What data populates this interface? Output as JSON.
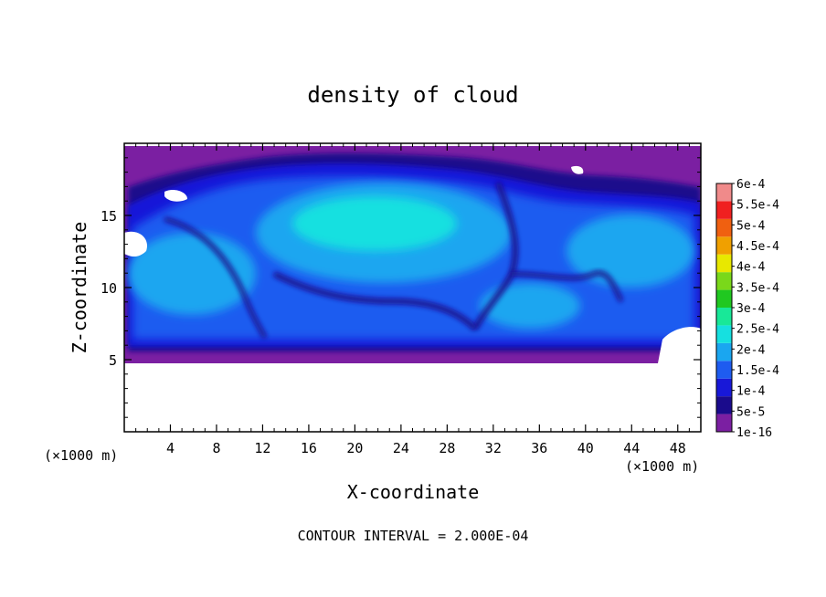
{
  "chart_data": {
    "type": "heatmap",
    "title": "density of cloud",
    "xlabel": "X-coordinate",
    "ylabel": "Z-coordinate",
    "x_unit_label": "(×1000 m)",
    "x_unit_label_right": "(×1000 m)",
    "xlim": [
      0,
      50
    ],
    "ylim": [
      0,
      20
    ],
    "x_ticks": [
      4,
      8,
      12,
      16,
      20,
      24,
      28,
      32,
      36,
      40,
      44,
      48
    ],
    "x_tick_labels": [
      "4",
      "8",
      "12",
      "16",
      "20",
      "24",
      "28",
      "32",
      "36",
      "40",
      "44",
      "48"
    ],
    "y_ticks": [
      5,
      10,
      15
    ],
    "y_tick_labels": [
      "5",
      "10",
      "15"
    ],
    "footer": "CONTOUR INTERVAL = 2.000E-04",
    "cloud_base_z": 5,
    "cloud_top_z": 19.5,
    "colorbar": {
      "levels": [
        "1e-16",
        "5e-5",
        "1e-4",
        "1.5e-4",
        "2e-4",
        "2.5e-4",
        "3e-4",
        "3.5e-4",
        "4e-4",
        "4.5e-4",
        "5e-4",
        "5.5e-4",
        "6e-4"
      ],
      "colors": [
        "#7b1fa2",
        "#1a0b8c",
        "#1818d8",
        "#1e5cf0",
        "#1aa6f0",
        "#16e0e0",
        "#18e898",
        "#20c820",
        "#7ad81a",
        "#e8e800",
        "#f0a000",
        "#f06010",
        "#f02020",
        "#f08a8a"
      ]
    }
  }
}
